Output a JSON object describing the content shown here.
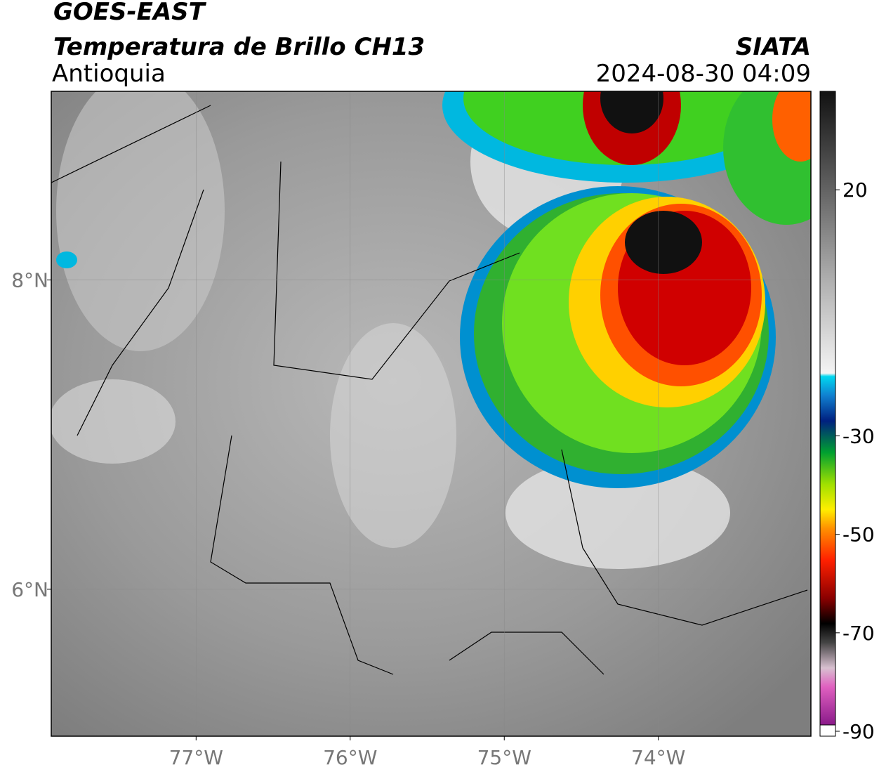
{
  "header": {
    "satellite": "GOES-EAST",
    "product": "Temperatura de Brillo CH13",
    "region": "Antioquia",
    "agency": "SIATA",
    "datetime": "2024-08-30 04:09"
  },
  "map": {
    "xlim": [
      -77.94,
      -73.01
    ],
    "ylim": [
      5.05,
      9.22
    ],
    "lon_ticks": [
      {
        "value": -77,
        "label": "77°W"
      },
      {
        "value": -76,
        "label": "76°W"
      },
      {
        "value": -75,
        "label": "75°W"
      },
      {
        "value": -74,
        "label": "74°W"
      }
    ],
    "lat_ticks": [
      {
        "value": 8,
        "label": "8°N"
      },
      {
        "value": 6,
        "label": "6°N"
      }
    ]
  },
  "colorbar": {
    "clim": [
      -91,
      40
    ],
    "ticks": [
      20,
      -30,
      -50,
      -70,
      -90
    ]
  }
}
